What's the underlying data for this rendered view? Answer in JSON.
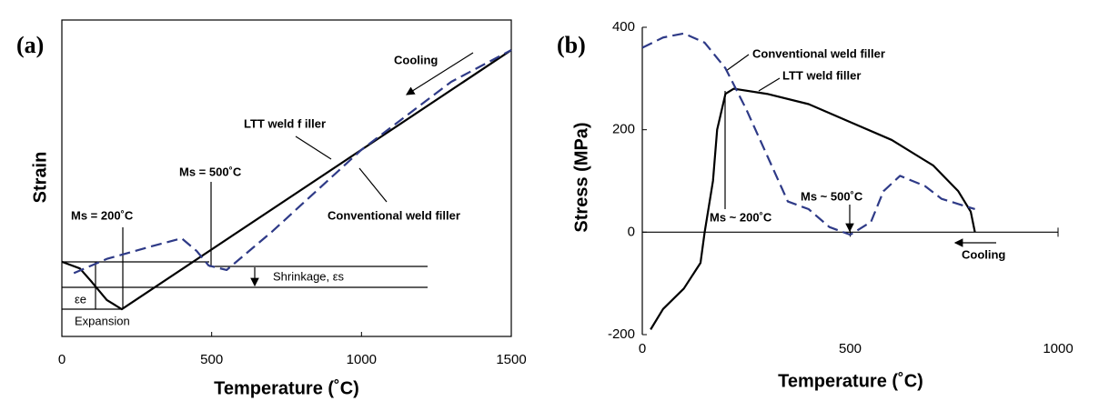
{
  "chart_data": [
    {
      "type": "line",
      "panel_label": "(a)",
      "x_label": "Temperature (˚C)",
      "y_label": "Strain",
      "xlim": [
        0,
        1500
      ],
      "xticks": [
        0,
        500,
        1000,
        1500
      ],
      "ylim": [
        0,
        100
      ],
      "annotations": [
        "Cooling",
        "Ms = 500˚C",
        "Ms = 200˚C",
        "Shrinkage, εs",
        "εe",
        "Expansion"
      ],
      "series": [
        {
          "name": "LTT weld f iller",
          "color": "#000000",
          "dash": false,
          "x": [
            0,
            60,
            100,
            150,
            200,
            1500
          ],
          "values": [
            23.6,
            21.5,
            17.2,
            11.5,
            8.6,
            90.5
          ]
        },
        {
          "name": "Conventional weld filler",
          "color": "#2e3a87",
          "dash": true,
          "x": [
            40,
            150,
            300,
            400,
            450,
            490,
            550,
            700,
            1000,
            1300,
            1500
          ],
          "values": [
            20,
            24.5,
            28.5,
            31,
            27,
            22.4,
            21,
            33,
            59,
            80.5,
            90.5
          ]
        }
      ]
    },
    {
      "type": "line",
      "panel_label": "(b)",
      "x_label": "Temperature (˚C)",
      "y_label": "Stress (MPa)",
      "xlim": [
        0,
        1000
      ],
      "xticks": [
        0,
        500,
        1000
      ],
      "ylim": [
        -200,
        400
      ],
      "yticks": [
        -200,
        0,
        200,
        400
      ],
      "annotations": [
        "Ms ~ 200˚C",
        "Ms ~ 500˚C",
        "Cooling"
      ],
      "series": [
        {
          "name": "LTT weld filler",
          "color": "#000000",
          "dash": false,
          "x": [
            20,
            50,
            100,
            140,
            150,
            170,
            180,
            200,
            220,
            300,
            400,
            500,
            600,
            700,
            760,
            790,
            800
          ],
          "values": [
            -190,
            -150,
            -110,
            -60,
            0,
            100,
            200,
            270,
            280,
            270,
            250,
            215,
            180,
            130,
            80,
            40,
            0
          ]
        },
        {
          "name": "Conventional weld filler",
          "color": "#2e3a87",
          "dash": true,
          "x": [
            0,
            50,
            100,
            150,
            200,
            250,
            300,
            350,
            400,
            450,
            500,
            550,
            580,
            620,
            680,
            720,
            780,
            800
          ],
          "values": [
            360,
            380,
            388,
            370,
            320,
            240,
            150,
            60,
            45,
            10,
            -5,
            20,
            80,
            110,
            90,
            65,
            50,
            45
          ]
        }
      ]
    }
  ]
}
